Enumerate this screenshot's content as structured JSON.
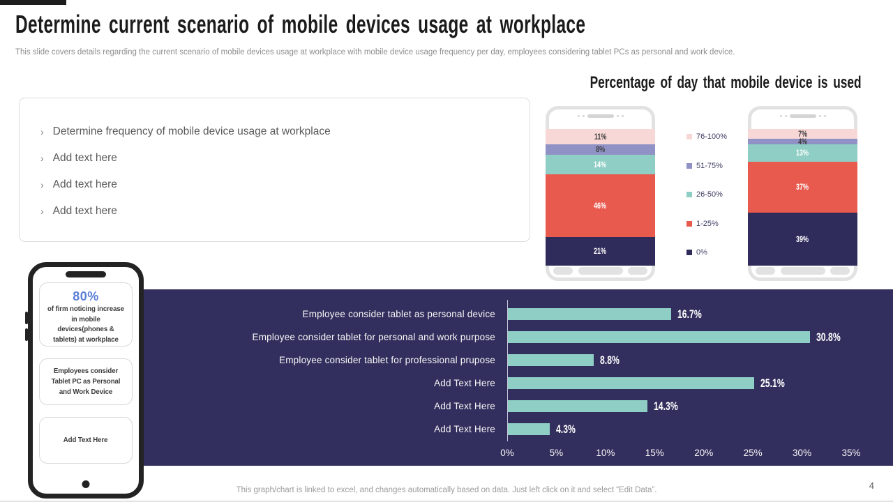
{
  "slide": {
    "title": "Determine current scenario of mobile devices usage at workplace",
    "subtitle": "This slide covers details regarding the current scenario of mobile devices usage at workplace with mobile device usage frequency per day, employees considering tablet PCs as personal and work device.",
    "page_number": "4",
    "footer_note": "This graph/chart is linked to excel, and changes automatically based on data. Just left click on it and select “Edit Data”."
  },
  "bullet_list": {
    "marker": "›",
    "items": [
      "Determine frequency of mobile device usage at workplace",
      "Add text here",
      "Add text here",
      "Add text here"
    ]
  },
  "phone_info_card": {
    "stat_value": "80%",
    "stat_caption": "of firm noticing increase in mobile devices(phones & tablets) at workplace",
    "card2_text": "Employees consider Tablet PC as Personal and Work Device",
    "card3_text": "Add Text Here"
  },
  "colors": {
    "teal": "#8ECEC5",
    "coral": "#E8594E",
    "navy": "#2F2C5C",
    "pink": "#F8D8D7",
    "purple": "#9092C6",
    "panel_navy": "#322F5E",
    "stat_blue": "#5A7ED6"
  },
  "chart_data": [
    {
      "type": "bar",
      "subtype": "stacked_column_phones",
      "title": "Percentage of day that mobile device is used",
      "categories": [
        "76-100%",
        "51-75%",
        "26-50%",
        "1-25%",
        "0%"
      ],
      "colors": [
        "#F8D8D7",
        "#9092C6",
        "#8ECEC5",
        "#E8594E",
        "#2F2C5C"
      ],
      "label_styles": [
        "dark",
        "dark",
        "light",
        "light",
        "light"
      ],
      "series": [
        {
          "name": "phone-left",
          "values": [
            11,
            8,
            14,
            46,
            21
          ],
          "labels": [
            "11%",
            "8%",
            "14%",
            "46%",
            "21%"
          ]
        },
        {
          "name": "phone-right",
          "values": [
            7,
            4,
            13,
            37,
            39
          ],
          "labels": [
            "7%",
            "4%",
            "13%",
            "37%",
            "39%"
          ]
        }
      ],
      "ylim": [
        0,
        100
      ],
      "legend_position": "center-between-phones",
      "grid": false
    },
    {
      "type": "bar",
      "subtype": "horizontal",
      "categories": [
        "Employee consider tablet as personal device",
        "Employee consider tablet for personal and work purpose",
        "Employee consider tablet for professional prupose",
        "Add Text Here",
        "Add Text Here",
        "Add Text Here"
      ],
      "values": [
        16.7,
        30.8,
        8.8,
        25.1,
        14.3,
        4.3
      ],
      "value_labels": [
        "16.7%",
        "30.8%",
        "8.8%",
        "25.1%",
        "14.3%",
        "4.3%"
      ],
      "x_ticks": [
        "0%",
        "5%",
        "10%",
        "15%",
        "20%",
        "25%",
        "30%",
        "35%"
      ],
      "xlim": [
        0,
        35
      ],
      "bar_color": "#8ECEC5",
      "background": "#322F5E",
      "grid": false,
      "legend_position": "none"
    }
  ]
}
